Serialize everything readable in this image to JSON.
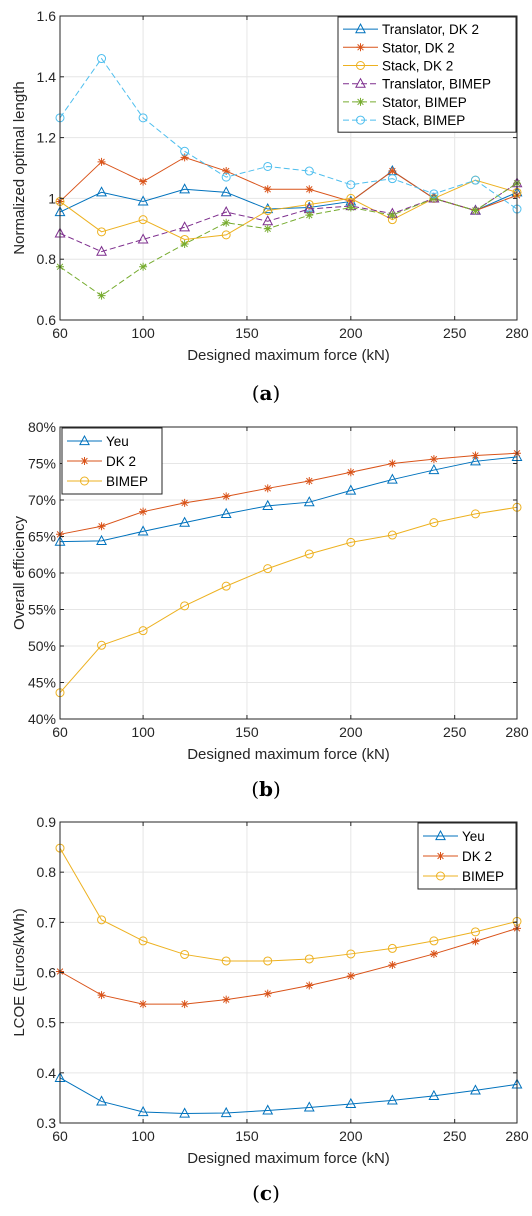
{
  "chart_data": [
    {
      "type": "line",
      "caption": "(a)",
      "caption_letter": "a",
      "xlabel": "Designed maximum force (kN)",
      "ylabel": "Normalized optimal length",
      "x": [
        60,
        80,
        100,
        120,
        140,
        160,
        180,
        200,
        220,
        240,
        260,
        280
      ],
      "xlim": [
        60,
        280
      ],
      "ylim": [
        0.6,
        1.6
      ],
      "xticks": [
        60,
        100,
        150,
        200,
        250,
        280
      ],
      "yticks": [
        0.6,
        0.8,
        1,
        1.2,
        1.4,
        1.6
      ],
      "ytick_format": "plain",
      "grid": true,
      "legend_position": "top-right",
      "series": [
        {
          "name": "Translator, DK 2",
          "color": "#0072BD",
          "marker": "triangle",
          "dash": "solid",
          "values": [
            0.955,
            1.02,
            0.99,
            1.03,
            1.02,
            0.965,
            0.97,
            0.99,
            1.09,
            1.0,
            0.96,
            1.02
          ]
        },
        {
          "name": "Stator, DK 2",
          "color": "#D95319",
          "marker": "asterisk",
          "dash": "solid",
          "values": [
            0.99,
            1.12,
            1.055,
            1.135,
            1.09,
            1.03,
            1.03,
            0.99,
            1.09,
            1.0,
            0.96,
            1.01
          ]
        },
        {
          "name": "Stack, DK 2",
          "color": "#EDB120",
          "marker": "circle",
          "dash": "solid",
          "values": [
            0.99,
            0.89,
            0.93,
            0.865,
            0.88,
            0.96,
            0.98,
            1.0,
            0.93,
            1.0,
            1.06,
            1.02
          ]
        },
        {
          "name": "Translator, BIMEP",
          "color": "#7E2F8E",
          "marker": "triangle",
          "dash": "dashed",
          "values": [
            0.885,
            0.825,
            0.865,
            0.905,
            0.955,
            0.925,
            0.965,
            0.975,
            0.95,
            1.0,
            0.96,
            1.05
          ]
        },
        {
          "name": "Stator, BIMEP",
          "color": "#77AC30",
          "marker": "asterisk",
          "dash": "dashed",
          "values": [
            0.775,
            0.68,
            0.775,
            0.85,
            0.92,
            0.9,
            0.945,
            0.97,
            0.945,
            1.0,
            0.96,
            1.05
          ]
        },
        {
          "name": "Stack, BIMEP",
          "color": "#4DBEEE",
          "marker": "circle",
          "dash": "dashed",
          "values": [
            1.265,
            1.46,
            1.265,
            1.155,
            1.07,
            1.105,
            1.09,
            1.045,
            1.065,
            1.015,
            1.06,
            0.965
          ]
        }
      ]
    },
    {
      "type": "line",
      "caption": "(b)",
      "caption_letter": "b",
      "xlabel": "Designed maximum force (kN)",
      "ylabel": "Overall efficiency",
      "x": [
        60,
        80,
        100,
        120,
        140,
        160,
        180,
        200,
        220,
        240,
        260,
        280
      ],
      "xlim": [
        60,
        280
      ],
      "ylim": [
        40,
        80
      ],
      "xticks": [
        60,
        100,
        150,
        200,
        250,
        280
      ],
      "yticks": [
        40,
        45,
        50,
        55,
        60,
        65,
        70,
        75,
        80
      ],
      "ytick_format": "percent",
      "grid": true,
      "legend_position": "top-left",
      "series": [
        {
          "name": "Yeu",
          "color": "#0072BD",
          "marker": "triangle",
          "dash": "solid",
          "values": [
            64.3,
            64.4,
            65.7,
            66.9,
            68.1,
            69.2,
            69.7,
            71.3,
            72.8,
            74.1,
            75.3,
            75.9
          ]
        },
        {
          "name": "DK 2",
          "color": "#D95319",
          "marker": "asterisk",
          "dash": "solid",
          "values": [
            65.3,
            66.4,
            68.4,
            69.6,
            70.5,
            71.6,
            72.6,
            73.8,
            75.0,
            75.6,
            76.1,
            76.4
          ]
        },
        {
          "name": "BIMEP",
          "color": "#EDB120",
          "marker": "circle",
          "dash": "solid",
          "values": [
            43.6,
            50.1,
            52.1,
            55.5,
            58.2,
            60.6,
            62.6,
            64.2,
            65.2,
            66.9,
            68.1,
            69.0
          ]
        }
      ]
    },
    {
      "type": "line",
      "caption": "(c)",
      "caption_letter": "c",
      "xlabel": "Designed maximum force (kN)",
      "ylabel": "LCOE (Euros/kWh)",
      "x": [
        60,
        80,
        100,
        120,
        140,
        160,
        180,
        200,
        220,
        240,
        260,
        280
      ],
      "xlim": [
        60,
        280
      ],
      "ylim": [
        0.3,
        0.9
      ],
      "xticks": [
        60,
        100,
        150,
        200,
        250,
        280
      ],
      "yticks": [
        0.3,
        0.4,
        0.5,
        0.6,
        0.7,
        0.8,
        0.9
      ],
      "ytick_format": "plain",
      "grid": true,
      "legend_position": "top-right",
      "series": [
        {
          "name": "Yeu",
          "color": "#0072BD",
          "marker": "triangle",
          "dash": "solid",
          "values": [
            0.39,
            0.343,
            0.322,
            0.319,
            0.32,
            0.325,
            0.331,
            0.338,
            0.345,
            0.354,
            0.365,
            0.377
          ]
        },
        {
          "name": "DK 2",
          "color": "#D95319",
          "marker": "asterisk",
          "dash": "solid",
          "values": [
            0.602,
            0.555,
            0.537,
            0.537,
            0.546,
            0.558,
            0.574,
            0.593,
            0.615,
            0.637,
            0.662,
            0.688
          ]
        },
        {
          "name": "BIMEP",
          "color": "#EDB120",
          "marker": "circle",
          "dash": "solid",
          "values": [
            0.848,
            0.705,
            0.663,
            0.636,
            0.623,
            0.623,
            0.627,
            0.637,
            0.648,
            0.663,
            0.681,
            0.702
          ]
        }
      ]
    }
  ]
}
